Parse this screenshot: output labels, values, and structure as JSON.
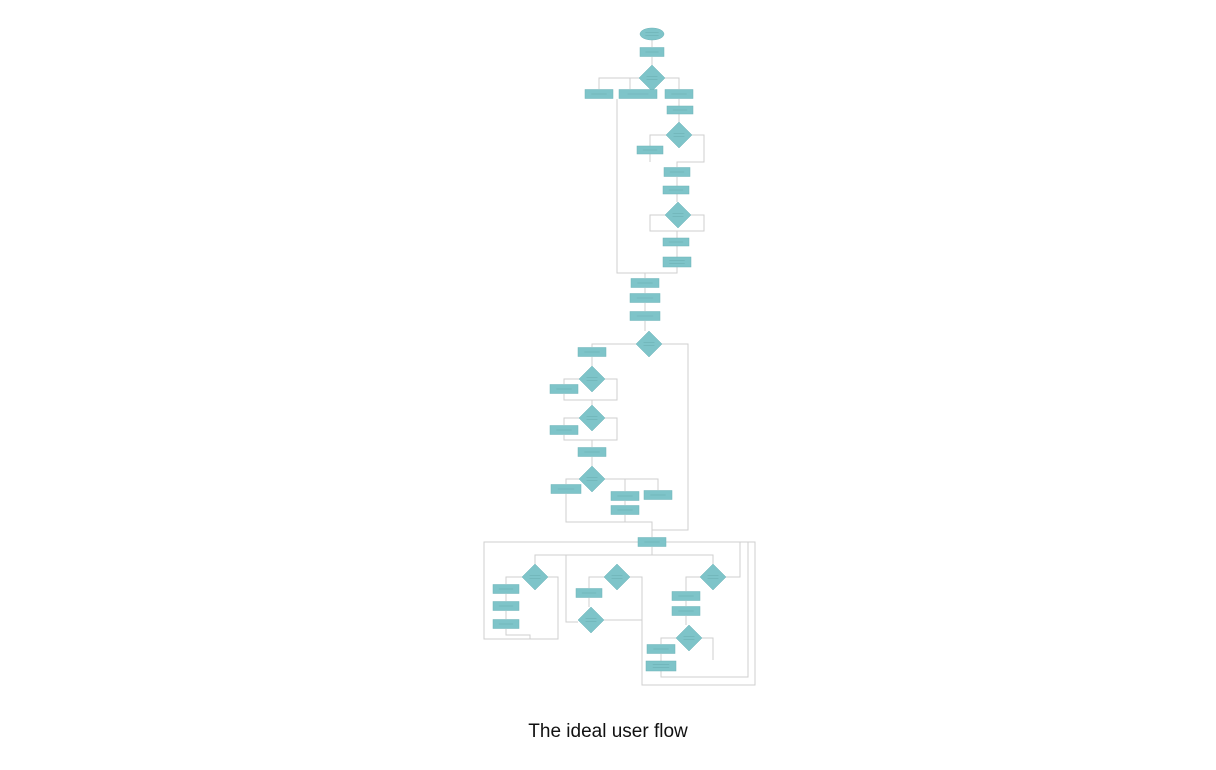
{
  "caption": "The ideal user flow",
  "colors": {
    "node_fill": "#7ec4c9",
    "connector": "#cfcfcf",
    "background": "#ffffff"
  },
  "nodes": [
    {
      "id": "n1",
      "shape": "terminator"
    },
    {
      "id": "n2",
      "shape": "process"
    },
    {
      "id": "n3",
      "shape": "decision"
    },
    {
      "id": "n4",
      "shape": "process"
    },
    {
      "id": "n5",
      "shape": "process"
    },
    {
      "id": "n6",
      "shape": "process"
    },
    {
      "id": "n7",
      "shape": "process"
    },
    {
      "id": "n8",
      "shape": "decision"
    },
    {
      "id": "n9",
      "shape": "process"
    },
    {
      "id": "n10",
      "shape": "process"
    },
    {
      "id": "n11",
      "shape": "process"
    },
    {
      "id": "n12",
      "shape": "decision"
    },
    {
      "id": "n13",
      "shape": "process"
    },
    {
      "id": "n14",
      "shape": "process"
    },
    {
      "id": "n15",
      "shape": "process"
    },
    {
      "id": "n16",
      "shape": "process"
    },
    {
      "id": "n17",
      "shape": "process"
    },
    {
      "id": "n18",
      "shape": "decision"
    },
    {
      "id": "n19",
      "shape": "process"
    },
    {
      "id": "n20",
      "shape": "decision"
    },
    {
      "id": "n21",
      "shape": "process"
    },
    {
      "id": "n22",
      "shape": "decision"
    },
    {
      "id": "n23",
      "shape": "process"
    },
    {
      "id": "n24",
      "shape": "process"
    },
    {
      "id": "n25",
      "shape": "decision"
    },
    {
      "id": "n26",
      "shape": "process"
    },
    {
      "id": "n27",
      "shape": "process"
    },
    {
      "id": "n28",
      "shape": "process"
    },
    {
      "id": "n29",
      "shape": "process"
    },
    {
      "id": "n30",
      "shape": "process"
    },
    {
      "id": "n31",
      "shape": "decision"
    },
    {
      "id": "n32",
      "shape": "process"
    },
    {
      "id": "n33",
      "shape": "process"
    },
    {
      "id": "n34",
      "shape": "process"
    },
    {
      "id": "n35",
      "shape": "decision"
    },
    {
      "id": "n36",
      "shape": "process"
    },
    {
      "id": "n37",
      "shape": "decision"
    },
    {
      "id": "n38",
      "shape": "decision"
    },
    {
      "id": "n39",
      "shape": "process"
    },
    {
      "id": "n40",
      "shape": "process"
    },
    {
      "id": "n41",
      "shape": "decision"
    },
    {
      "id": "n42",
      "shape": "process"
    },
    {
      "id": "n43",
      "shape": "process"
    }
  ]
}
